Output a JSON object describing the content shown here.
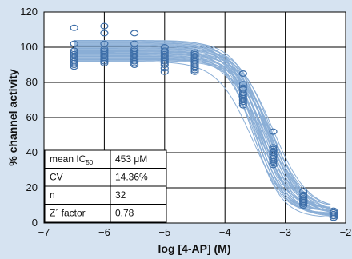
{
  "chart_data": {
    "type": "scatter",
    "title": "",
    "xlabel": "log [4-AP] (M)",
    "ylabel": "% channel activity",
    "xlim": [
      -7,
      -2
    ],
    "ylim": [
      0,
      120
    ],
    "xticks": [
      -7,
      -6,
      -5,
      -4,
      -3,
      -2
    ],
    "yticks": [
      0,
      20,
      40,
      60,
      80,
      100,
      120
    ],
    "grid": true,
    "fit": {
      "model": "four-parameter logistic",
      "bottom": 5,
      "top": 95,
      "log_ic50": -3.344,
      "hill": 1.7,
      "curve_count": 32
    },
    "series": [
      {
        "x": [
          -6.5,
          -6.5,
          -6.5,
          -6.5,
          -6.5,
          -6.5,
          -6.5,
          -6.5,
          -6.5,
          -6.5,
          -6.5,
          -6.5
        ],
        "y": [
          111,
          102,
          98,
          96,
          95,
          94,
          93,
          92,
          91,
          90,
          89,
          97
        ]
      },
      {
        "x": [
          -6.0,
          -6.0,
          -6.0,
          -6.0,
          -6.0,
          -6.0,
          -6.0,
          -6.0,
          -6.0,
          -6.0,
          -6.0,
          -6.0
        ],
        "y": [
          112,
          108,
          102,
          98,
          96,
          95,
          94,
          93,
          92,
          91,
          97,
          99
        ]
      },
      {
        "x": [
          -5.5,
          -5.5,
          -5.5,
          -5.5,
          -5.5,
          -5.5,
          -5.5,
          -5.5,
          -5.5,
          -5.5,
          -5.5,
          -5.5
        ],
        "y": [
          108,
          102,
          98,
          96,
          95,
          94,
          93,
          92,
          91,
          90,
          97,
          99
        ]
      },
      {
        "x": [
          -5.0,
          -5.0,
          -5.0,
          -5.0,
          -5.0,
          -5.0,
          -5.0,
          -5.0,
          -5.0,
          -5.0,
          -5.0,
          -5.0
        ],
        "y": [
          100,
          97,
          96,
          95,
          94,
          93,
          92,
          91,
          90,
          88,
          86,
          98
        ]
      },
      {
        "x": [
          -4.5,
          -4.5,
          -4.5,
          -4.5,
          -4.5,
          -4.5,
          -4.5,
          -4.5,
          -4.5,
          -4.5,
          -4.5,
          -4.5
        ],
        "y": [
          97,
          96,
          95,
          94,
          93,
          92,
          91,
          90,
          89,
          88,
          87,
          86
        ]
      },
      {
        "x": [
          -3.7,
          -3.7,
          -3.7,
          -3.7,
          -3.7,
          -3.7,
          -3.7,
          -3.7,
          -3.7,
          -3.7,
          -3.7,
          -3.7
        ],
        "y": [
          85,
          79,
          77,
          76,
          74,
          73,
          72,
          71,
          70,
          69,
          68,
          67
        ]
      },
      {
        "x": [
          -3.2,
          -3.2,
          -3.2,
          -3.2,
          -3.2,
          -3.2,
          -3.2,
          -3.2,
          -3.2,
          -3.2,
          -3.2,
          -3.2
        ],
        "y": [
          52,
          43,
          42,
          41,
          40,
          39,
          38,
          37,
          36,
          35,
          34,
          33
        ]
      },
      {
        "x": [
          -2.7,
          -2.7,
          -2.7,
          -2.7,
          -2.7,
          -2.7,
          -2.7,
          -2.7,
          -2.7,
          -2.7,
          -2.7,
          -2.7
        ],
        "y": [
          18,
          16,
          15,
          14,
          14,
          13,
          13,
          12,
          12,
          11,
          11,
          10
        ]
      },
      {
        "x": [
          -2.2,
          -2.2,
          -2.2,
          -2.2,
          -2.2,
          -2.2,
          -2.2,
          -2.2,
          -2.2,
          -2.2,
          -2.2,
          -2.2
        ],
        "y": [
          7,
          6,
          6,
          5,
          5,
          4,
          4,
          4,
          3,
          3,
          5,
          6
        ]
      }
    ],
    "stats_table": [
      {
        "label": "mean IC",
        "sub": "50",
        "value": "453 μM"
      },
      {
        "label": "CV",
        "sub": "",
        "value": "14.36%"
      },
      {
        "label": "n",
        "sub": "",
        "value": "32"
      },
      {
        "label": "Z´ factor",
        "sub": "",
        "value": "0.78"
      }
    ],
    "colors": {
      "background": "#d6e3f1",
      "plot_area": "#ffffff",
      "data": "#3d6ea8",
      "fit": "#8aaed6",
      "grid": "#000000"
    }
  }
}
